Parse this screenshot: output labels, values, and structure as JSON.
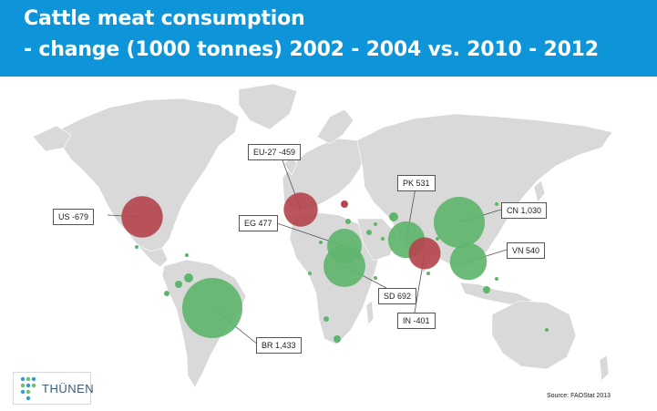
{
  "title": {
    "line1": "Cattle meat consumption",
    "line2": "- change (1000 tonnes) 2002 - 2004 vs. 2010 - 2012"
  },
  "chart_data": {
    "type": "bubble-map",
    "unit": "1000 tonnes",
    "colors": {
      "increase": "#5fb56e",
      "decrease": "#b4474f",
      "land": "#d9d9d9",
      "background": "#ffffff"
    },
    "labeled": [
      {
        "code": "US",
        "label": "US -679",
        "value": -679
      },
      {
        "code": "EU-27",
        "label": "EU-27 -459",
        "value": -459
      },
      {
        "code": "EG",
        "label": "EG 477",
        "value": 477
      },
      {
        "code": "PK",
        "label": "PK 531",
        "value": 531
      },
      {
        "code": "CN",
        "label": "CN 1,030",
        "value": 1030
      },
      {
        "code": "VN",
        "label": "VN 540",
        "value": 540
      },
      {
        "code": "SD",
        "label": "SD 692",
        "value": 692
      },
      {
        "code": "IN",
        "label": "IN -401",
        "value": -401
      },
      {
        "code": "BR",
        "label": "BR 1,433",
        "value": 1433
      }
    ]
  },
  "source": "Source:  FAOStat 2013",
  "logo": {
    "text": "THÜNEN",
    "icon": "thuenen-dots-logo"
  }
}
